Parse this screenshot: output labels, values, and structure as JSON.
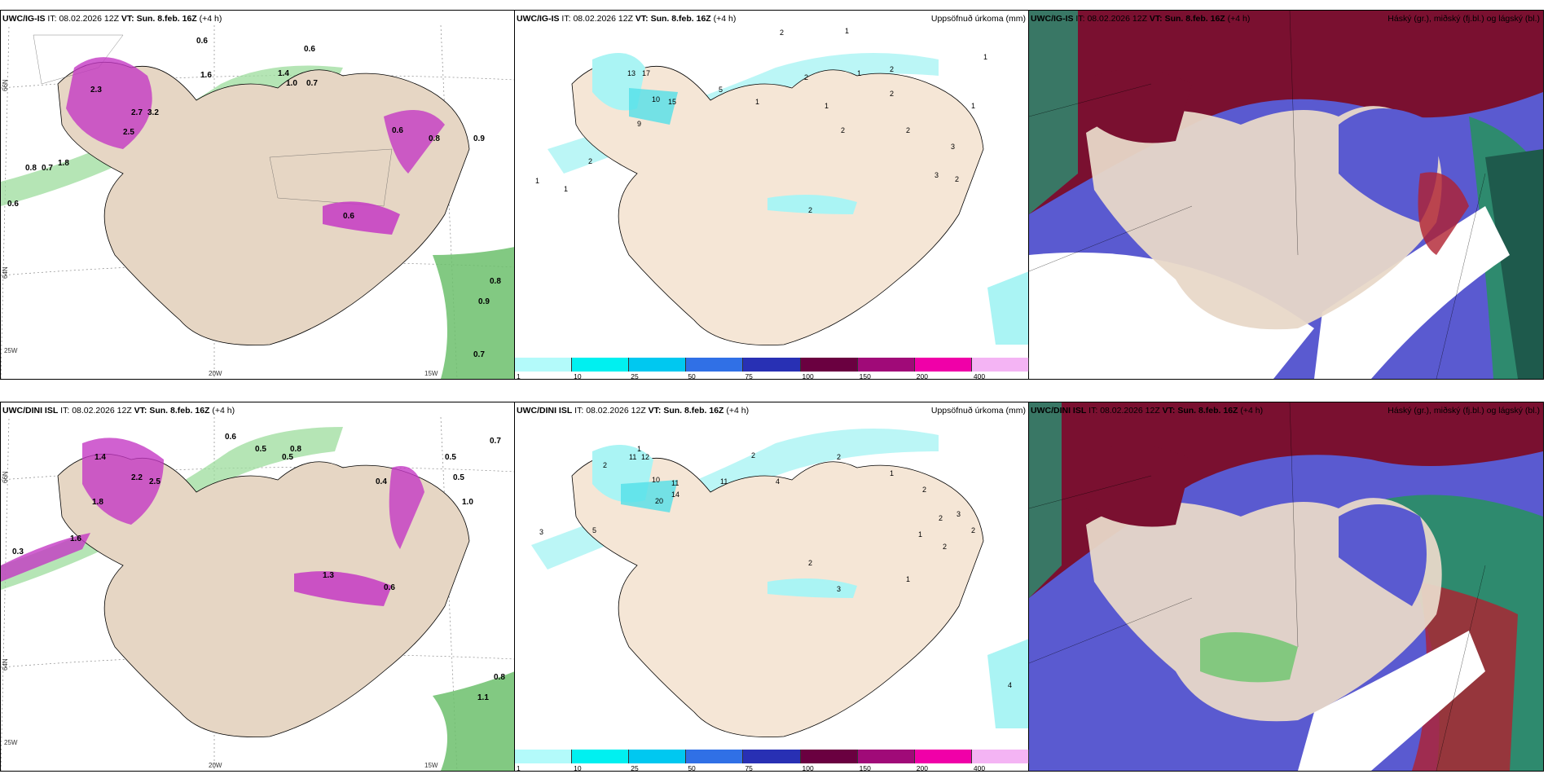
{
  "rows": [
    {
      "model": "UWC/IG-IS",
      "panels": [
        {
          "id": "wind",
          "model": "UWC/IG-IS",
          "it_label": "IT:",
          "it_value": "08.02.2026 12Z",
          "vt_label": "VT:",
          "vt_value": "Sun. 8.feb. 16Z",
          "lead": "(+4 h)",
          "right_title": "",
          "values": [
            "0.6",
            "0.6",
            "1.6",
            "1.4",
            "1.0",
            "0.7",
            "2.3",
            "2.7",
            "3.2",
            "2.5",
            "0.8",
            "0.7",
            "1.8",
            "0.9",
            "0.8",
            "0.6",
            "0.8",
            "0.9",
            "0.7",
            "0.6",
            "0.6"
          ]
        },
        {
          "id": "precip",
          "model": "UWC/IG-IS",
          "it_label": "IT:",
          "it_value": "08.02.2026 12Z",
          "vt_label": "VT:",
          "vt_value": "Sun. 8.feb. 16Z",
          "lead": "(+4 h)",
          "right_title": "Uppsöfnuð úrkoma (mm)",
          "values": [
            "2",
            "1",
            "13",
            "17",
            "10",
            "15",
            "5",
            "9",
            "2",
            "1",
            "1",
            "2",
            "1",
            "2",
            "2",
            "1",
            "2",
            "2",
            "3",
            "2",
            "1",
            "1",
            "2",
            "3",
            "1"
          ]
        },
        {
          "id": "cloud",
          "model": "UWC/IG-IS",
          "it_label": "IT:",
          "it_value": "08.02.2026 12Z",
          "vt_label": "VT:",
          "vt_value": "Sun. 8.feb. 16Z",
          "lead": "(+4 h)",
          "right_title": "Háský (gr.), miðský (fj.bl.) og lágský (bl.)"
        }
      ]
    },
    {
      "model": "UWC/DINI ISL",
      "panels": [
        {
          "id": "wind",
          "model": "UWC/DINI ISL",
          "it_label": "IT:",
          "it_value": "08.02.2026 12Z",
          "vt_label": "VT:",
          "vt_value": "Sun. 8.feb. 16Z",
          "lead": "(+4 h)",
          "right_title": "",
          "values": [
            "0.6",
            "0.5",
            "0.8",
            "1.4",
            "2.2",
            "2.5",
            "1.8",
            "0.4",
            "0.5",
            "0.5",
            "0.7",
            "1.0",
            "1.6",
            "0.3",
            "0.5",
            "0.8",
            "1.1",
            "1.3",
            "0.6"
          ]
        },
        {
          "id": "precip",
          "model": "UWC/DINI ISL",
          "it_label": "IT:",
          "it_value": "08.02.2026 12Z",
          "vt_label": "VT:",
          "vt_value": "Sun. 8.feb. 16Z",
          "lead": "(+4 h)",
          "right_title": "Uppsöfnuð úrkoma (mm)",
          "values": [
            "1",
            "2",
            "11",
            "12",
            "10",
            "11",
            "20",
            "14",
            "11",
            "3",
            "5",
            "2",
            "4",
            "2",
            "1",
            "2",
            "2",
            "3",
            "2",
            "1",
            "2",
            "3",
            "4",
            "2",
            "1"
          ]
        },
        {
          "id": "cloud",
          "model": "UWC/DINI ISL",
          "it_label": "IT:",
          "it_value": "08.02.2026 12Z",
          "vt_label": "VT:",
          "vt_value": "Sun. 8.feb. 16Z",
          "lead": "(+4 h)",
          "right_title": "Háský (gr.), miðský (fj.bl.) og lágský (bl.)"
        }
      ]
    }
  ],
  "axes": {
    "lat_labels": [
      "66N",
      "64N"
    ],
    "lon_labels": [
      "25W",
      "20W",
      "15W"
    ]
  },
  "precip_scale": {
    "ticks": [
      "1",
      "10",
      "25",
      "50",
      "75",
      "100",
      "150",
      "200",
      "400"
    ],
    "colors": [
      "#b3fafa",
      "#00f0f0",
      "#00c8f0",
      "#3070e6",
      "#2830b4",
      "#6a0040",
      "#a00a78",
      "#f000a8",
      "#f4b4f4"
    ]
  },
  "colors": {
    "land": "#f5e6d6",
    "land_wind": "#e6d6c4",
    "sea_precip": "#ffffff",
    "precip_light": "#aaf4f4",
    "wind_green": "#8cd68c",
    "wind_purple": "#c43ac4",
    "cloud_high": "#7a1030",
    "cloud_mid": "#5a5ad0",
    "cloud_low": "#2e8a6e"
  }
}
